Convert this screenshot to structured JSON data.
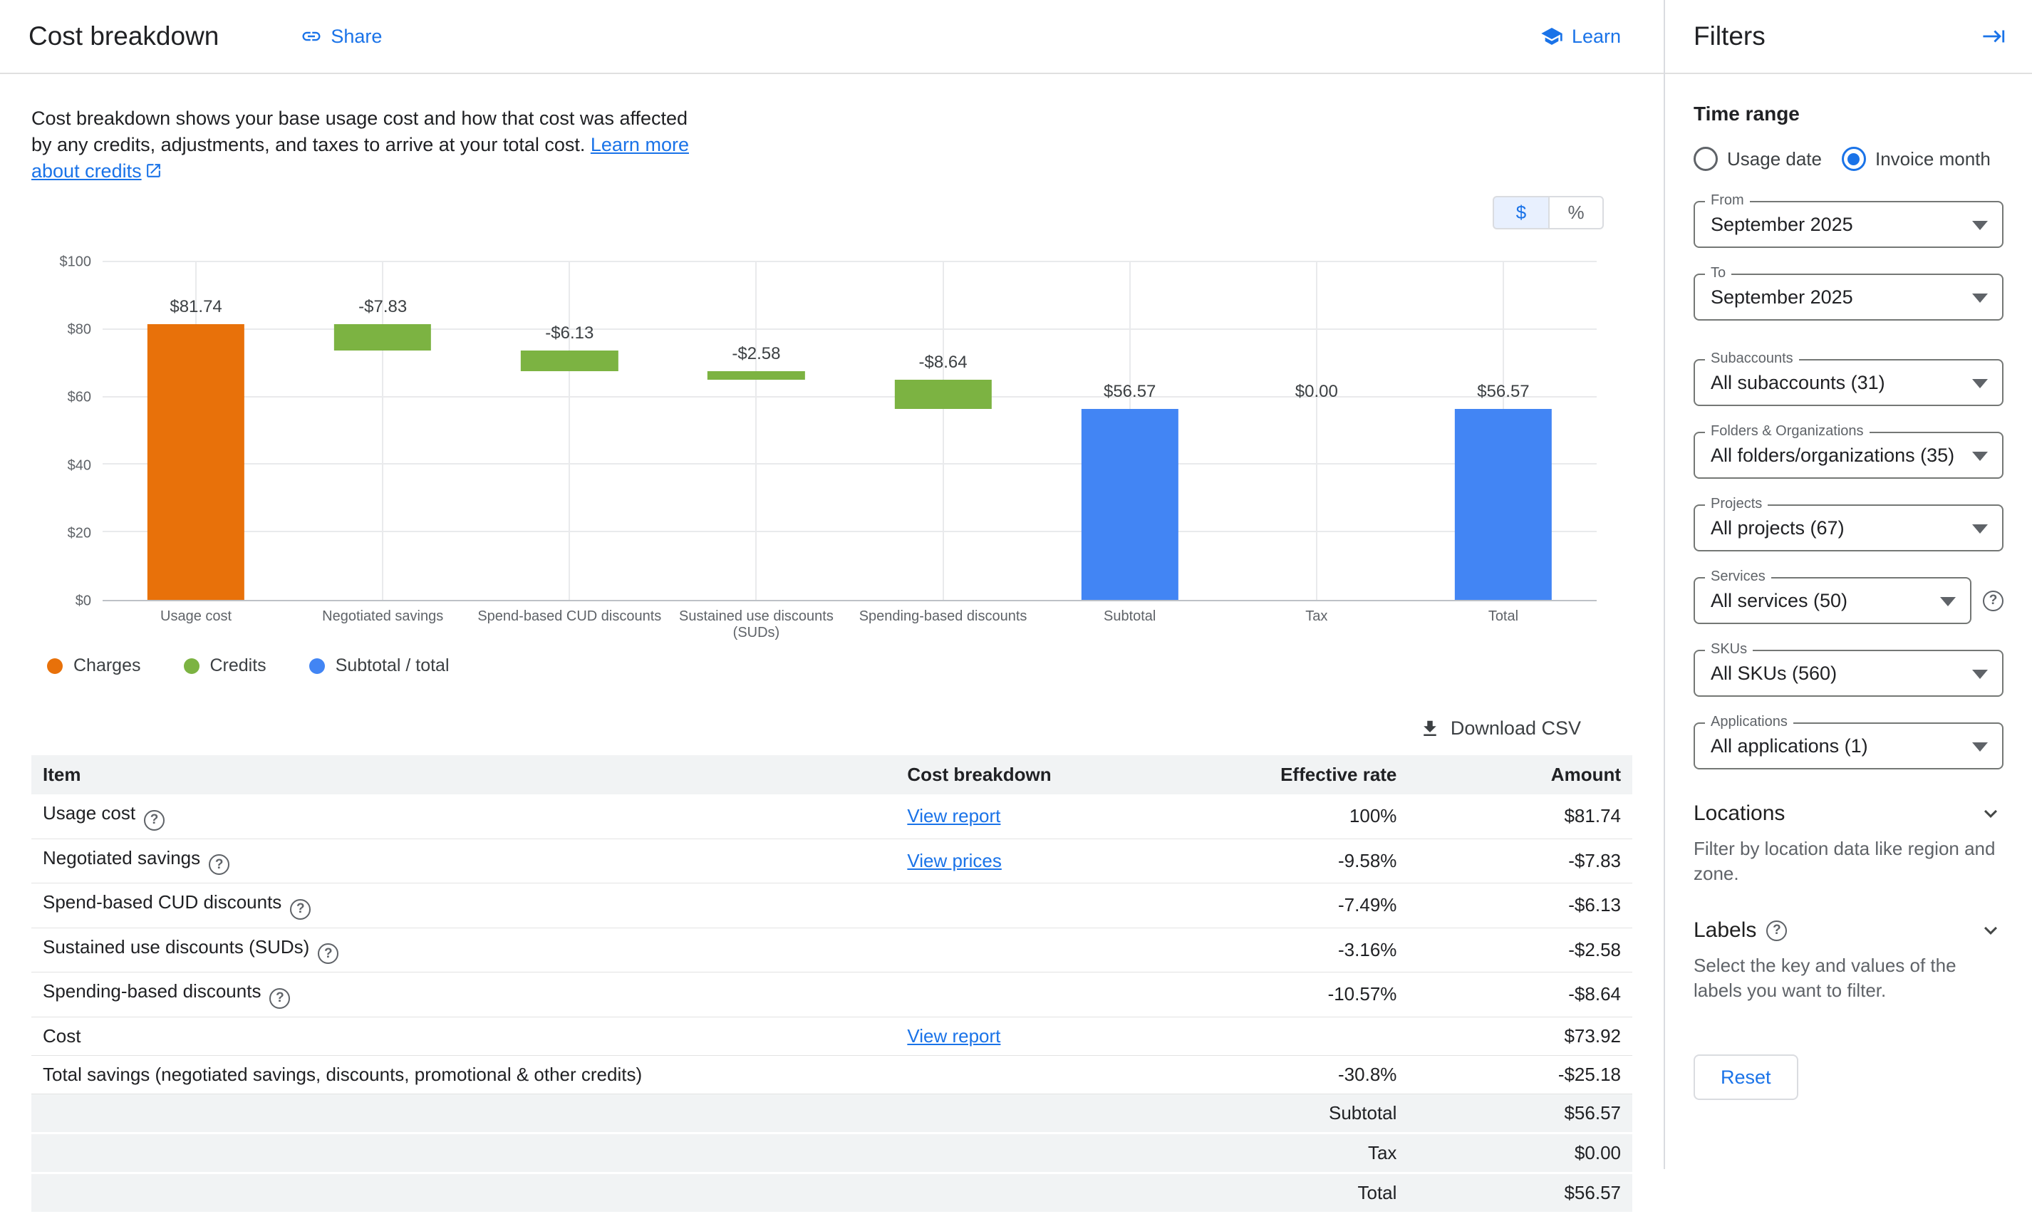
{
  "header": {
    "title": "Cost breakdown",
    "share": "Share",
    "learn": "Learn"
  },
  "description": {
    "text": "Cost breakdown shows your base usage cost and how that cost was affected by any credits, adjustments, and taxes to arrive at your total cost.",
    "link": "Learn more about credits"
  },
  "toggle": {
    "dollar": "$",
    "percent": "%"
  },
  "chart_data": {
    "type": "waterfall",
    "categories": [
      "Usage cost",
      "Negotiated savings",
      "Spend-based CUD discounts",
      "Sustained use discounts (SUDs)",
      "Spending-based discounts",
      "Subtotal",
      "Tax",
      "Total"
    ],
    "values": [
      81.74,
      -7.83,
      -6.13,
      -2.58,
      -8.64,
      56.57,
      0.0,
      56.57
    ],
    "bar_labels": [
      "$81.74",
      "-$7.83",
      "-$6.13",
      "-$2.58",
      "-$8.64",
      "$56.57",
      "$0.00",
      "$56.57"
    ],
    "bar_types": [
      "charge",
      "credit",
      "credit",
      "credit",
      "credit",
      "total",
      "total",
      "total"
    ],
    "bar_start": [
      0,
      73.91,
      67.78,
      65.2,
      56.56,
      0,
      56.57,
      0
    ],
    "bar_end": [
      81.74,
      81.74,
      73.91,
      67.78,
      65.2,
      56.57,
      56.57,
      56.57
    ],
    "ylim": [
      0,
      100
    ],
    "ytick_values": [
      0,
      20,
      40,
      60,
      80,
      100
    ],
    "ytick_labels": [
      "$0",
      "$20",
      "$40",
      "$60",
      "$80",
      "$100"
    ],
    "colors": {
      "charge": "#e8710a",
      "credit": "#7cb342",
      "total": "#4285f4"
    },
    "legend": [
      {
        "label": "Charges",
        "type": "charge"
      },
      {
        "label": "Credits",
        "type": "credit"
      },
      {
        "label": "Subtotal / total",
        "type": "total"
      }
    ]
  },
  "download": "Download CSV",
  "table": {
    "headers": [
      "Item",
      "Cost breakdown",
      "Effective rate",
      "Amount"
    ],
    "rows": [
      {
        "item": "Usage cost",
        "help": true,
        "link": "View report",
        "rate": "100%",
        "amount": "$81.74"
      },
      {
        "item": "Negotiated savings",
        "help": true,
        "link": "View prices",
        "rate": "-9.58%",
        "amount": "-$7.83"
      },
      {
        "item": "Spend-based CUD discounts",
        "help": true,
        "link": "",
        "rate": "-7.49%",
        "amount": "-$6.13"
      },
      {
        "item": "Sustained use discounts (SUDs)",
        "help": true,
        "link": "",
        "rate": "-3.16%",
        "amount": "-$2.58"
      },
      {
        "item": "Spending-based discounts",
        "help": true,
        "link": "",
        "rate": "-10.57%",
        "amount": "-$8.64"
      },
      {
        "item": "Cost",
        "help": false,
        "link": "View report",
        "rate": "",
        "amount": "$73.92"
      },
      {
        "item": "Total savings (negotiated savings, discounts, promotional & other credits)",
        "help": false,
        "link": "",
        "rate": "-30.8%",
        "amount": "-$25.18"
      }
    ],
    "summary": [
      {
        "label": "Subtotal",
        "amount": "$56.57"
      },
      {
        "label": "Tax",
        "amount": "$0.00"
      },
      {
        "label": "Total",
        "amount": "$56.57"
      }
    ]
  },
  "filters": {
    "title": "Filters",
    "time_range": {
      "label": "Time range",
      "options": [
        {
          "label": "Usage date",
          "selected": false
        },
        {
          "label": "Invoice month",
          "selected": true
        }
      ]
    },
    "selects": [
      {
        "label": "From",
        "value": "September 2025",
        "help": false,
        "gap_before": false
      },
      {
        "label": "To",
        "value": "September 2025",
        "help": false,
        "gap_before": false
      },
      {
        "label": "Subaccounts",
        "value": "All subaccounts (31)",
        "help": false,
        "gap_before": true
      },
      {
        "label": "Folders & Organizations",
        "value": "All folders/organizations (35)",
        "help": false,
        "gap_before": false
      },
      {
        "label": "Projects",
        "value": "All projects (67)",
        "help": false,
        "gap_before": false
      },
      {
        "label": "Services",
        "value": "All services (50)",
        "help": true,
        "gap_before": false
      },
      {
        "label": "SKUs",
        "value": "All SKUs (560)",
        "help": false,
        "gap_before": false
      },
      {
        "label": "Applications",
        "value": "All applications (1)",
        "help": false,
        "gap_before": false
      }
    ],
    "locations": {
      "title": "Locations",
      "description": "Filter by location data like region and zone."
    },
    "labels_section": {
      "title": "Labels",
      "description": "Select the key and values of the labels you want to filter."
    },
    "reset": "Reset"
  }
}
